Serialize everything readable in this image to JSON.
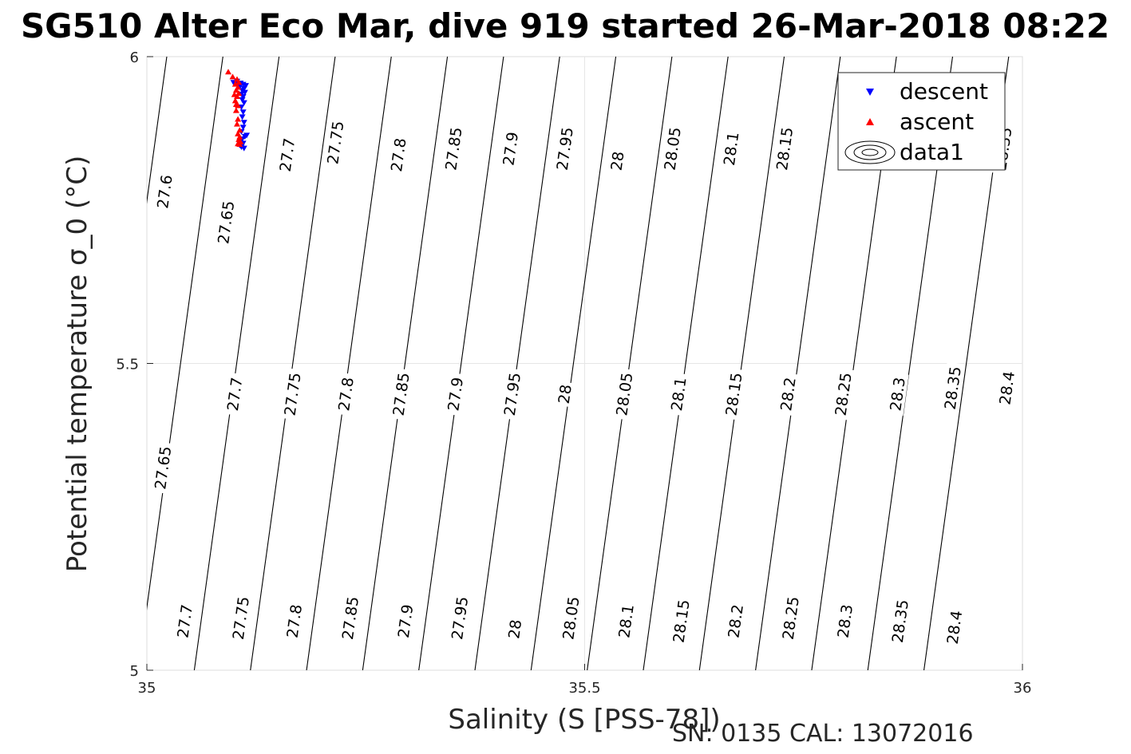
{
  "chart_data": {
    "type": "scatter",
    "title": "SG510 Alter Eco Mar, dive 919 started 26-Mar-2018 08:22",
    "xlabel": "Salinity (S [PSS-78])",
    "ylabel": "Potential temperature σ_0 (°C)",
    "xlim": [
      35,
      36
    ],
    "ylim": [
      5,
      6
    ],
    "x_ticks": [
      "35",
      "35.5",
      "36"
    ],
    "y_ticks": [
      "5",
      "5.5",
      "6"
    ],
    "grid": true,
    "legend_position": "top-right",
    "legend": [
      "descent",
      "ascent",
      "data1"
    ],
    "footer": "SN: 0135  CAL: 13072016",
    "contour_levels": [
      27.6,
      27.65,
      27.7,
      27.75,
      27.8,
      27.85,
      27.9,
      27.95,
      28.0,
      28.05,
      28.1,
      28.15,
      28.2,
      28.25,
      28.3,
      28.35,
      28.4
    ],
    "contour_labels": [
      {
        "text": "27.6",
        "s": 35.02,
        "t": 5.78
      },
      {
        "text": "27.65",
        "s": 35.09,
        "t": 5.73
      },
      {
        "text": "27.7",
        "s": 35.16,
        "t": 5.84
      },
      {
        "text": "27.75",
        "s": 35.215,
        "t": 5.86
      },
      {
        "text": "27.8",
        "s": 35.287,
        "t": 5.84
      },
      {
        "text": "27.85",
        "s": 35.35,
        "t": 5.85
      },
      {
        "text": "27.9",
        "s": 35.415,
        "t": 5.85
      },
      {
        "text": "27.95",
        "s": 35.477,
        "t": 5.85
      },
      {
        "text": "28",
        "s": 35.537,
        "t": 5.83
      },
      {
        "text": "28.05",
        "s": 35.6,
        "t": 5.85
      },
      {
        "text": "28.1",
        "s": 35.667,
        "t": 5.85
      },
      {
        "text": "28.15",
        "s": 35.728,
        "t": 5.85
      },
      {
        "text": "28.35",
        "s": 35.978,
        "t": 5.85
      },
      {
        "text": "27.65",
        "s": 35.018,
        "t": 5.33
      },
      {
        "text": "27.7",
        "s": 35.1,
        "t": 5.45
      },
      {
        "text": "27.75",
        "s": 35.166,
        "t": 5.45
      },
      {
        "text": "27.8",
        "s": 35.227,
        "t": 5.45
      },
      {
        "text": "27.85",
        "s": 35.29,
        "t": 5.45
      },
      {
        "text": "27.9",
        "s": 35.352,
        "t": 5.45
      },
      {
        "text": "27.95",
        "s": 35.417,
        "t": 5.45
      },
      {
        "text": "28",
        "s": 35.477,
        "t": 5.45
      },
      {
        "text": "28.05",
        "s": 35.545,
        "t": 5.45
      },
      {
        "text": "28.1",
        "s": 35.607,
        "t": 5.45
      },
      {
        "text": "28.15",
        "s": 35.67,
        "t": 5.45
      },
      {
        "text": "28.2",
        "s": 35.732,
        "t": 5.45
      },
      {
        "text": "28.25",
        "s": 35.795,
        "t": 5.45
      },
      {
        "text": "28.3",
        "s": 35.857,
        "t": 5.45
      },
      {
        "text": "28.35",
        "s": 35.92,
        "t": 5.46
      },
      {
        "text": "28.4",
        "s": 35.982,
        "t": 5.46
      },
      {
        "text": "27.7",
        "s": 35.043,
        "t": 5.08
      },
      {
        "text": "27.75",
        "s": 35.107,
        "t": 5.085
      },
      {
        "text": "27.8",
        "s": 35.168,
        "t": 5.08
      },
      {
        "text": "27.85",
        "s": 35.232,
        "t": 5.085
      },
      {
        "text": "27.9",
        "s": 35.295,
        "t": 5.08
      },
      {
        "text": "27.95",
        "s": 35.357,
        "t": 5.085
      },
      {
        "text": "28",
        "s": 35.42,
        "t": 5.067
      },
      {
        "text": "28.05",
        "s": 35.484,
        "t": 5.085
      },
      {
        "text": "28.1",
        "s": 35.547,
        "t": 5.08
      },
      {
        "text": "28.15",
        "s": 35.61,
        "t": 5.08
      },
      {
        "text": "28.2",
        "s": 35.672,
        "t": 5.08
      },
      {
        "text": "28.25",
        "s": 35.735,
        "t": 5.085
      },
      {
        "text": "28.3",
        "s": 35.797,
        "t": 5.08
      },
      {
        "text": "28.35",
        "s": 35.86,
        "t": 5.08
      },
      {
        "text": "28.4",
        "s": 35.922,
        "t": 5.07
      }
    ],
    "series": [
      {
        "name": "descent",
        "color": "#0000ff",
        "marker": "triangle-down",
        "points": [
          [
            35.107,
            5.957
          ],
          [
            35.11,
            5.955
          ],
          [
            35.113,
            5.953
          ],
          [
            35.106,
            5.951
          ],
          [
            35.111,
            5.948
          ],
          [
            35.109,
            5.945
          ],
          [
            35.112,
            5.942
          ],
          [
            35.108,
            5.939
          ],
          [
            35.11,
            5.935
          ],
          [
            35.109,
            5.93
          ],
          [
            35.111,
            5.925
          ],
          [
            35.108,
            5.918
          ],
          [
            35.11,
            5.91
          ],
          [
            35.109,
            5.902
          ],
          [
            35.111,
            5.893
          ],
          [
            35.11,
            5.885
          ],
          [
            35.108,
            5.878
          ],
          [
            35.112,
            5.87
          ],
          [
            35.109,
            5.866
          ],
          [
            35.107,
            5.862
          ],
          [
            35.11,
            5.859
          ],
          [
            35.106,
            5.856
          ],
          [
            35.108,
            5.853
          ],
          [
            35.111,
            5.851
          ],
          [
            35.114,
            5.872
          ],
          [
            35.099,
            5.958
          ],
          [
            35.103,
            5.96
          ]
        ]
      },
      {
        "name": "ascent",
        "color": "#ff0000",
        "marker": "triangle-up",
        "points": [
          [
            35.093,
            5.975
          ],
          [
            35.098,
            5.967
          ],
          [
            35.103,
            5.963
          ],
          [
            35.105,
            5.958
          ],
          [
            35.101,
            5.955
          ],
          [
            35.104,
            5.95
          ],
          [
            35.102,
            5.945
          ],
          [
            35.105,
            5.94
          ],
          [
            35.103,
            5.935
          ],
          [
            35.101,
            5.928
          ],
          [
            35.104,
            5.92
          ],
          [
            35.102,
            5.912
          ],
          [
            35.104,
            5.898
          ],
          [
            35.103,
            5.89
          ],
          [
            35.106,
            5.88
          ],
          [
            35.104,
            5.874
          ],
          [
            35.106,
            5.869
          ],
          [
            35.105,
            5.865
          ],
          [
            35.107,
            5.861
          ],
          [
            35.104,
            5.858
          ],
          [
            35.106,
            5.857
          ],
          [
            35.102,
            5.922
          ],
          [
            35.1,
            5.938
          ]
        ]
      }
    ]
  }
}
